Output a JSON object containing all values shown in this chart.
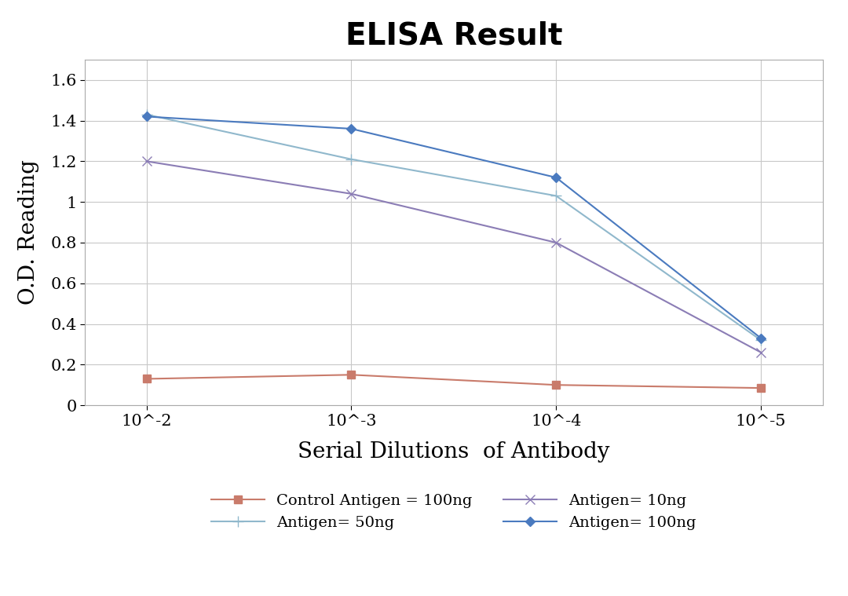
{
  "title": "ELISA Result",
  "xlabel": "Serial Dilutions  of Antibody",
  "ylabel": "O.D. Reading",
  "x_values": [
    0.01,
    0.001,
    0.0001,
    1e-05
  ],
  "x_tick_labels": [
    "10^-2",
    "10^-3",
    "10^-4",
    "10^-5"
  ],
  "series": [
    {
      "label": "Control Antigen = 100ng",
      "color": "#c97b6b",
      "marker": "s",
      "markersize": 7,
      "values": [
        0.13,
        0.15,
        0.1,
        0.085
      ]
    },
    {
      "label": "Antigen= 10ng",
      "color": "#8b7db5",
      "marker": "x",
      "markersize": 9,
      "values": [
        1.2,
        1.04,
        0.8,
        0.26
      ]
    },
    {
      "label": "Antigen= 50ng",
      "color": "#90b8cc",
      "marker": "+",
      "markersize": 10,
      "values": [
        1.43,
        1.21,
        1.03,
        0.32
      ]
    },
    {
      "label": "Antigen= 100ng",
      "color": "#4a7abf",
      "marker": "D",
      "markersize": 6,
      "values": [
        1.42,
        1.36,
        1.12,
        0.33
      ]
    }
  ],
  "ylim": [
    0,
    1.7
  ],
  "yticks": [
    0,
    0.2,
    0.4,
    0.6,
    0.8,
    1.0,
    1.2,
    1.4,
    1.6
  ],
  "background_color": "#ffffff",
  "title_fontsize": 28,
  "label_fontsize": 20,
  "tick_fontsize": 15,
  "legend_fontsize": 14
}
